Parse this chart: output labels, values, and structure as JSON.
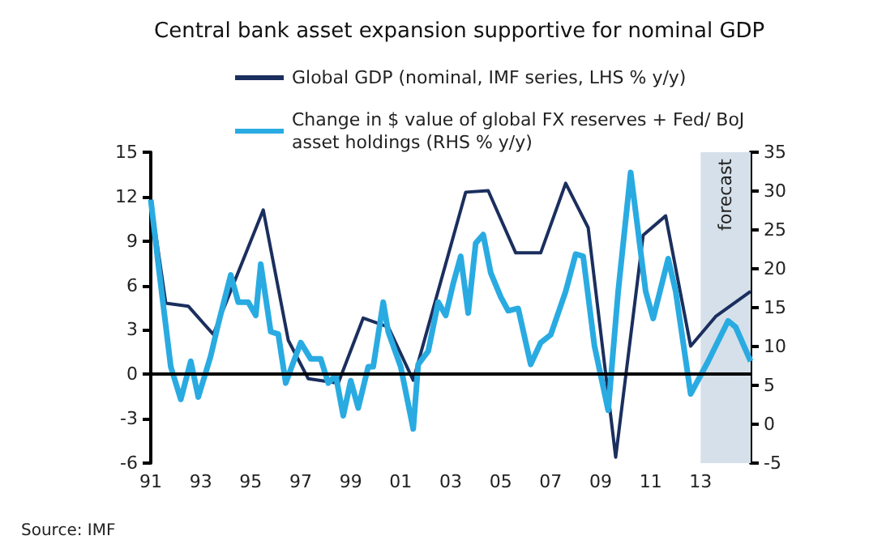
{
  "chart_data": {
    "type": "line",
    "title": "Central bank asset expansion supportive for nominal GDP",
    "xlim": [
      1991,
      2015
    ],
    "xticks": [
      {
        "value": 1991,
        "label": "91"
      },
      {
        "value": 1993,
        "label": "93"
      },
      {
        "value": 1995,
        "label": "95"
      },
      {
        "value": 1997,
        "label": "97"
      },
      {
        "value": 1999,
        "label": "99"
      },
      {
        "value": 2001,
        "label": "01"
      },
      {
        "value": 2003,
        "label": "03"
      },
      {
        "value": 2005,
        "label": "05"
      },
      {
        "value": 2007,
        "label": "07"
      },
      {
        "value": 2009,
        "label": "09"
      },
      {
        "value": 2011,
        "label": "11"
      },
      {
        "value": 2013,
        "label": "13"
      }
    ],
    "ylim": [
      -6,
      15
    ],
    "yticks": [
      -6,
      -3,
      0,
      3,
      6,
      9,
      12,
      15
    ],
    "y2lim": [
      -5,
      35
    ],
    "y2ticks": [
      -5,
      0,
      5,
      10,
      15,
      20,
      25,
      30,
      35
    ],
    "series": [
      {
        "name": "Global GDP (nominal, IMF series, LHS % y/y)",
        "color": "#1b2f5e",
        "x": [
          1991.0,
          1991.6,
          1992.5,
          1993.5,
          1995.5,
          1996.5,
          1997.3,
          1998.5,
          1999.5,
          2000.5,
          2001.5,
          2003.6,
          2004.5,
          2005.6,
          2006.6,
          2007.6,
          2008.5,
          2009.6,
          2010.7,
          2011.6,
          2012.6,
          2013.6,
          2015.0
        ],
        "values": [
          11.8,
          4.8,
          4.6,
          2.7,
          11.1,
          2.3,
          -0.3,
          -0.6,
          3.8,
          3.2,
          -0.4,
          12.3,
          12.4,
          8.2,
          8.2,
          12.9,
          9.9,
          -5.6,
          9.4,
          10.7,
          1.9,
          3.9,
          5.6
        ]
      },
      {
        "name": "Change in $ value of global FX reserves + Fed/ BoJ asset holdings (RHS % y/y)",
        "color": "#29abe2",
        "axis": "y2",
        "x": [
          1991.0,
          1991.3,
          1991.8,
          1992.2,
          1992.6,
          1992.9,
          1993.4,
          1993.7,
          1994.2,
          1994.5,
          1994.9,
          1995.2,
          1995.4,
          1995.8,
          1996.1,
          1996.4,
          1996.8,
          1997.0,
          1997.4,
          1997.8,
          1998.1,
          1998.4,
          1998.7,
          1999.0,
          1999.3,
          1999.7,
          1999.9,
          2000.3,
          2000.5,
          2001.0,
          2001.5,
          2001.7,
          2002.1,
          2002.5,
          2002.8,
          2003.1,
          2003.4,
          2003.7,
          2004.0,
          2004.3,
          2004.6,
          2005.0,
          2005.3,
          2005.7,
          2006.2,
          2006.6,
          2007.0,
          2007.6,
          2008.0,
          2008.3,
          2008.75,
          2009.3,
          2009.7,
          2010.2,
          2010.8,
          2011.1,
          2011.7,
          2012.0,
          2012.6,
          2013.3,
          2014.1,
          2014.4,
          2015.0
        ],
        "values": [
          28.9,
          20.6,
          7.4,
          3.2,
          8.1,
          3.5,
          8.8,
          12.9,
          19.2,
          15.7,
          15.7,
          14.0,
          20.6,
          11.9,
          11.6,
          5.3,
          8.8,
          10.5,
          8.4,
          8.4,
          5.3,
          6.3,
          1.1,
          5.6,
          2.1,
          7.4,
          7.4,
          15.7,
          11.9,
          7.4,
          -0.6,
          7.7,
          9.4,
          15.7,
          14.0,
          18.1,
          21.6,
          14.3,
          23.3,
          24.4,
          19.5,
          16.4,
          14.6,
          14.9,
          7.7,
          10.5,
          11.5,
          17.1,
          21.9,
          21.6,
          10.1,
          1.8,
          17.1,
          32.4,
          17.1,
          13.6,
          21.3,
          17.1,
          3.9,
          8.1,
          13.3,
          12.5,
          8.1
        ]
      }
    ],
    "ref_lines": [
      {
        "axis": "y",
        "value": 0,
        "color": "#000000"
      }
    ],
    "bands": [
      {
        "axis": "x",
        "from": 2013,
        "to": 2015,
        "label": "forecast",
        "color": "#d5e0ea"
      }
    ],
    "legend": "top",
    "grid": false,
    "annotations": [
      "Source: IMF"
    ]
  }
}
